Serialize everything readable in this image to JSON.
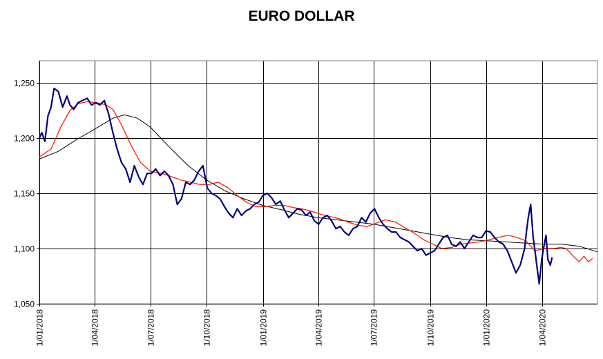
{
  "chart_data": {
    "type": "line",
    "title": "EURO DOLLAR",
    "xlabel": "",
    "ylabel": "",
    "xlim": [
      "2018-01-01",
      "2020-06-30"
    ],
    "ylim": [
      1.05,
      1.27
    ],
    "grid": true,
    "legend": "none",
    "y_ticks": [
      "1,050",
      "1,100",
      "1,150",
      "1,200",
      "1,250"
    ],
    "y_tick_values": [
      1.05,
      1.1,
      1.15,
      1.2,
      1.25
    ],
    "x_ticks": [
      "1/01/2018",
      "1/04/2018",
      "1/07/2018",
      "1/10/2018",
      "1/01/2019",
      "1/04/2019",
      "1/07/2019",
      "1/10/2019",
      "1/01/2020",
      "1/04/2020"
    ],
    "x_tick_dates": [
      "2018-01-01",
      "2018-04-01",
      "2018-07-01",
      "2018-10-01",
      "2019-01-01",
      "2019-04-01",
      "2019-07-01",
      "2019-10-01",
      "2020-01-01",
      "2020-04-01"
    ],
    "colors": {
      "price": "#000080",
      "short_ma": "#ff2000",
      "long_ma": "#000000",
      "grid": "#000000"
    },
    "series": [
      {
        "key": "price",
        "x": [
          "2018-01-01",
          "2018-01-05",
          "2018-01-10",
          "2018-01-15",
          "2018-01-20",
          "2018-01-25",
          "2018-02-01",
          "2018-02-08",
          "2018-02-15",
          "2018-02-20",
          "2018-02-26",
          "2018-03-05",
          "2018-03-12",
          "2018-03-20",
          "2018-03-27",
          "2018-04-03",
          "2018-04-10",
          "2018-04-17",
          "2018-04-24",
          "2018-05-01",
          "2018-05-08",
          "2018-05-15",
          "2018-05-22",
          "2018-05-29",
          "2018-06-05",
          "2018-06-12",
          "2018-06-19",
          "2018-06-26",
          "2018-07-03",
          "2018-07-10",
          "2018-07-17",
          "2018-07-24",
          "2018-07-31",
          "2018-08-07",
          "2018-08-14",
          "2018-08-21",
          "2018-08-28",
          "2018-09-04",
          "2018-09-11",
          "2018-09-18",
          "2018-09-25",
          "2018-10-02",
          "2018-10-09",
          "2018-10-16",
          "2018-10-23",
          "2018-10-30",
          "2018-11-06",
          "2018-11-13",
          "2018-11-20",
          "2018-11-27",
          "2018-12-04",
          "2018-12-11",
          "2018-12-18",
          "2018-12-25",
          "2019-01-01",
          "2019-01-08",
          "2019-01-15",
          "2019-01-22",
          "2019-01-29",
          "2019-02-05",
          "2019-02-12",
          "2019-02-19",
          "2019-02-26",
          "2019-03-05",
          "2019-03-12",
          "2019-03-19",
          "2019-03-26",
          "2019-04-02",
          "2019-04-09",
          "2019-04-16",
          "2019-04-23",
          "2019-04-30",
          "2019-05-07",
          "2019-05-14",
          "2019-05-21",
          "2019-05-28",
          "2019-06-04",
          "2019-06-11",
          "2019-06-18",
          "2019-06-25",
          "2019-07-02",
          "2019-07-09",
          "2019-07-16",
          "2019-07-23",
          "2019-07-30",
          "2019-08-06",
          "2019-08-13",
          "2019-08-20",
          "2019-08-27",
          "2019-09-03",
          "2019-09-10",
          "2019-09-17",
          "2019-09-24",
          "2019-10-01",
          "2019-10-08",
          "2019-10-15",
          "2019-10-22",
          "2019-10-29",
          "2019-11-05",
          "2019-11-12",
          "2019-11-19",
          "2019-11-26",
          "2019-12-03",
          "2019-12-10",
          "2019-12-17",
          "2019-12-24",
          "2019-12-31",
          "2020-01-07",
          "2020-01-14",
          "2020-01-21",
          "2020-01-28",
          "2020-02-04",
          "2020-02-11",
          "2020-02-18",
          "2020-02-25",
          "2020-03-03",
          "2020-03-06",
          "2020-03-09",
          "2020-03-13",
          "2020-03-17",
          "2020-03-20",
          "2020-03-24",
          "2020-03-27",
          "2020-03-31",
          "2020-04-03",
          "2020-04-07",
          "2020-04-10",
          "2020-04-14",
          "2020-04-17"
        ],
        "y": [
          1.2,
          1.205,
          1.197,
          1.22,
          1.228,
          1.245,
          1.242,
          1.228,
          1.238,
          1.23,
          1.226,
          1.232,
          1.234,
          1.236,
          1.23,
          1.232,
          1.23,
          1.234,
          1.222,
          1.205,
          1.19,
          1.178,
          1.172,
          1.16,
          1.175,
          1.165,
          1.158,
          1.168,
          1.168,
          1.172,
          1.166,
          1.17,
          1.166,
          1.158,
          1.14,
          1.145,
          1.16,
          1.158,
          1.162,
          1.17,
          1.175,
          1.155,
          1.15,
          1.148,
          1.145,
          1.138,
          1.132,
          1.128,
          1.136,
          1.13,
          1.134,
          1.136,
          1.14,
          1.142,
          1.148,
          1.15,
          1.146,
          1.14,
          1.143,
          1.135,
          1.128,
          1.132,
          1.136,
          1.135,
          1.13,
          1.133,
          1.125,
          1.122,
          1.128,
          1.13,
          1.125,
          1.118,
          1.12,
          1.115,
          1.112,
          1.118,
          1.12,
          1.128,
          1.124,
          1.132,
          1.136,
          1.128,
          1.122,
          1.118,
          1.115,
          1.115,
          1.11,
          1.108,
          1.106,
          1.102,
          1.098,
          1.1,
          1.094,
          1.096,
          1.098,
          1.104,
          1.11,
          1.112,
          1.104,
          1.102,
          1.106,
          1.1,
          1.106,
          1.112,
          1.11,
          1.11,
          1.116,
          1.115,
          1.11,
          1.106,
          1.104,
          1.098,
          1.088,
          1.078,
          1.085,
          1.1,
          1.115,
          1.128,
          1.14,
          1.11,
          1.098,
          1.08,
          1.068,
          1.09,
          1.1,
          1.112,
          1.09,
          1.085,
          1.092
        ]
      },
      {
        "key": "short_ma",
        "x": [
          "2018-01-01",
          "2018-01-20",
          "2018-02-05",
          "2018-02-20",
          "2018-03-05",
          "2018-03-20",
          "2018-04-05",
          "2018-04-20",
          "2018-05-01",
          "2018-05-15",
          "2018-06-01",
          "2018-06-15",
          "2018-07-01",
          "2018-07-20",
          "2018-08-05",
          "2018-08-20",
          "2018-09-05",
          "2018-09-20",
          "2018-10-05",
          "2018-10-20",
          "2018-11-05",
          "2018-11-20",
          "2018-12-05",
          "2018-12-20",
          "2019-01-05",
          "2019-01-20",
          "2019-02-05",
          "2019-02-20",
          "2019-03-05",
          "2019-03-20",
          "2019-04-05",
          "2019-04-20",
          "2019-05-05",
          "2019-05-20",
          "2019-06-05",
          "2019-06-20",
          "2019-07-05",
          "2019-07-20",
          "2019-08-05",
          "2019-08-20",
          "2019-09-05",
          "2019-09-20",
          "2019-10-05",
          "2019-10-20",
          "2019-11-05",
          "2019-11-20",
          "2019-12-05",
          "2019-12-20",
          "2020-01-05",
          "2020-01-20",
          "2020-02-05",
          "2020-02-20",
          "2020-03-05",
          "2020-03-20",
          "2020-04-05",
          "2020-04-20",
          "2020-05-01",
          "2020-05-10",
          "2020-05-20",
          "2020-05-31",
          "2020-06-08",
          "2020-06-15",
          "2020-06-22"
        ],
        "y": [
          1.183,
          1.19,
          1.21,
          1.225,
          1.231,
          1.233,
          1.232,
          1.23,
          1.226,
          1.212,
          1.192,
          1.178,
          1.17,
          1.168,
          1.165,
          1.162,
          1.16,
          1.158,
          1.158,
          1.16,
          1.155,
          1.148,
          1.142,
          1.138,
          1.138,
          1.139,
          1.139,
          1.137,
          1.136,
          1.134,
          1.131,
          1.129,
          1.127,
          1.124,
          1.121,
          1.12,
          1.123,
          1.126,
          1.124,
          1.119,
          1.114,
          1.108,
          1.104,
          1.1,
          1.101,
          1.104,
          1.105,
          1.106,
          1.108,
          1.11,
          1.112,
          1.11,
          1.107,
          1.098,
          1.1,
          1.1,
          1.101,
          1.1,
          1.094,
          1.088,
          1.093,
          1.088,
          1.091
        ]
      },
      {
        "key": "long_ma",
        "x": [
          "2018-01-01",
          "2018-02-01",
          "2018-03-01",
          "2018-04-01",
          "2018-05-01",
          "2018-05-20",
          "2018-06-10",
          "2018-07-01",
          "2018-08-01",
          "2018-09-01",
          "2018-10-01",
          "2018-11-01",
          "2018-12-01",
          "2019-01-01",
          "2019-02-01",
          "2019-03-01",
          "2019-04-01",
          "2019-05-01",
          "2019-06-01",
          "2019-07-01",
          "2019-08-01",
          "2019-09-01",
          "2019-10-01",
          "2019-11-01",
          "2019-12-01",
          "2020-01-01",
          "2020-02-01",
          "2020-03-01",
          "2020-04-01",
          "2020-05-01",
          "2020-06-01",
          "2020-06-30"
        ],
        "y": [
          1.181,
          1.188,
          1.198,
          1.208,
          1.218,
          1.221,
          1.218,
          1.21,
          1.192,
          1.175,
          1.162,
          1.152,
          1.145,
          1.139,
          1.135,
          1.131,
          1.128,
          1.126,
          1.124,
          1.122,
          1.119,
          1.116,
          1.113,
          1.11,
          1.108,
          1.107,
          1.106,
          1.105,
          1.104,
          1.104,
          1.102,
          1.097
        ]
      }
    ]
  }
}
